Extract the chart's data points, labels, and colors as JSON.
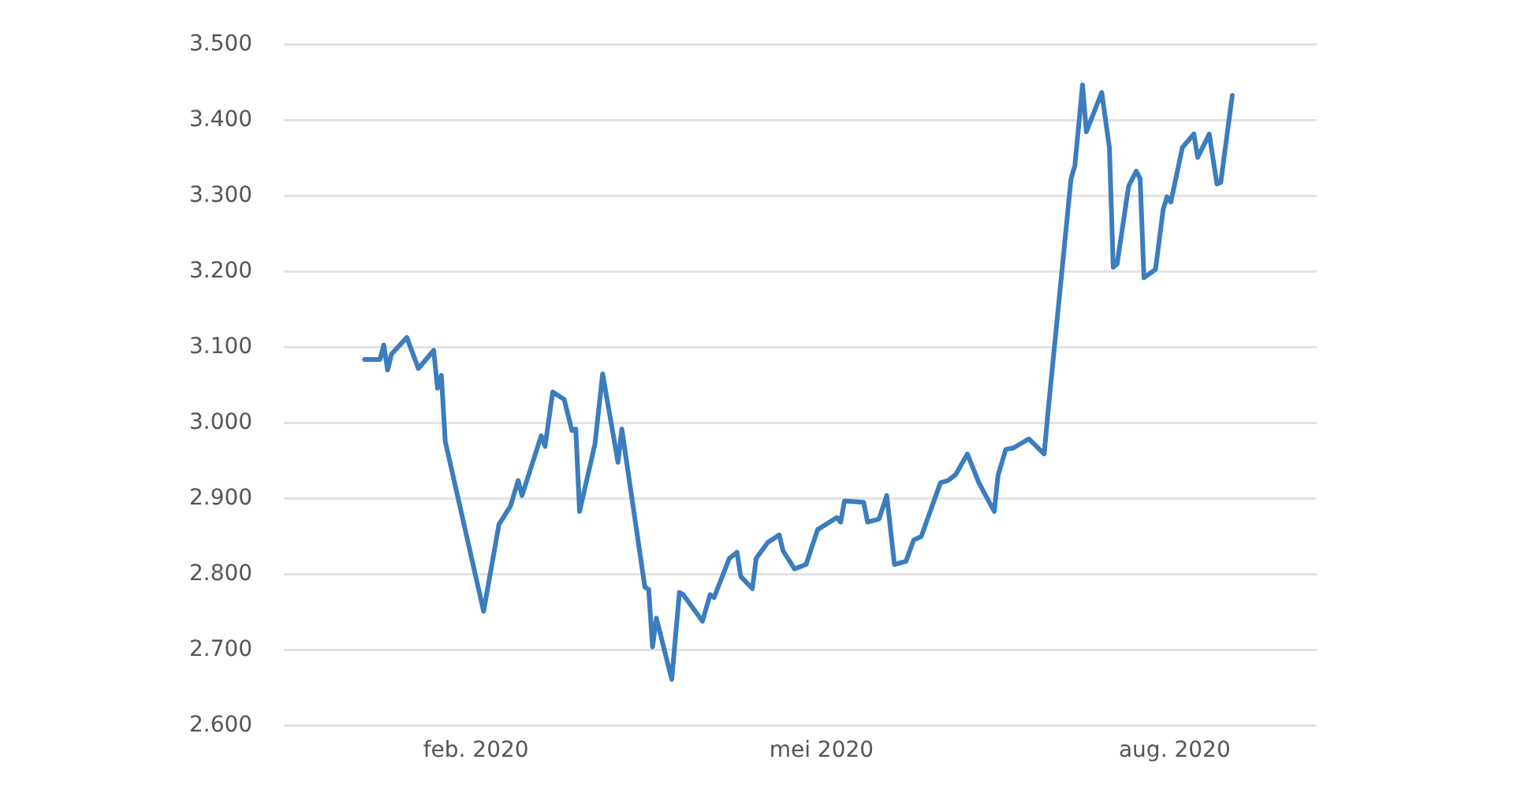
{
  "chart_data": {
    "type": "line",
    "x": [
      "2020-01-03",
      "2020-01-07",
      "2020-01-08",
      "2020-01-09",
      "2020-01-10",
      "2020-01-14",
      "2020-01-17",
      "2020-01-21",
      "2020-01-22",
      "2020-01-23",
      "2020-01-24",
      "2020-02-03",
      "2020-02-07",
      "2020-02-10",
      "2020-02-12",
      "2020-02-13",
      "2020-02-18",
      "2020-02-19",
      "2020-02-21",
      "2020-02-24",
      "2020-02-26",
      "2020-02-27",
      "2020-02-28",
      "2020-03-03",
      "2020-03-05",
      "2020-03-09",
      "2020-03-10",
      "2020-03-16",
      "2020-03-17",
      "2020-03-18",
      "2020-03-19",
      "2020-03-23",
      "2020-03-25",
      "2020-03-26",
      "2020-03-31",
      "2020-04-02",
      "2020-04-03",
      "2020-04-07",
      "2020-04-09",
      "2020-04-10",
      "2020-04-13",
      "2020-04-14",
      "2020-04-17",
      "2020-04-20",
      "2020-04-21",
      "2020-04-24",
      "2020-04-27",
      "2020-04-30",
      "2020-05-05",
      "2020-05-06",
      "2020-05-07",
      "2020-05-12",
      "2020-05-13",
      "2020-05-16",
      "2020-05-18",
      "2020-05-20",
      "2020-05-23",
      "2020-05-25",
      "2020-05-27",
      "2020-06-01",
      "2020-06-03",
      "2020-06-05",
      "2020-06-08",
      "2020-06-11",
      "2020-06-15",
      "2020-06-16",
      "2020-06-18",
      "2020-06-20",
      "2020-06-24",
      "2020-06-28",
      "2020-06-29",
      "2020-07-05",
      "2020-07-06",
      "2020-07-08",
      "2020-07-09",
      "2020-07-13",
      "2020-07-15",
      "2020-07-16",
      "2020-07-17",
      "2020-07-20",
      "2020-07-22",
      "2020-07-23",
      "2020-07-24",
      "2020-07-27",
      "2020-07-29",
      "2020-07-30",
      "2020-07-31",
      "2020-08-03",
      "2020-08-06",
      "2020-08-07",
      "2020-08-10",
      "2020-08-12",
      "2020-08-13",
      "2020-08-16"
    ],
    "series": [
      {
        "color": "#3b7dbd",
        "values": [
          3084,
          3084,
          3103,
          3070,
          3091,
          3113,
          3072,
          3096,
          3046,
          3063,
          2976,
          2751,
          2866,
          2890,
          2924,
          2904,
          2983,
          2969,
          3041,
          3031,
          2990,
          2992,
          2883,
          2972,
          3065,
          2948,
          2992,
          2783,
          2780,
          2704,
          2742,
          2661,
          2776,
          2773,
          2738,
          2773,
          2769,
          2821,
          2829,
          2797,
          2781,
          2821,
          2842,
          2852,
          2831,
          2807,
          2813,
          2859,
          2875,
          2869,
          2897,
          2895,
          2869,
          2873,
          2904,
          2813,
          2817,
          2845,
          2850,
          2921,
          2924,
          2932,
          2959,
          2921,
          2883,
          2931,
          2965,
          2967,
          2979,
          2959,
          3014,
          3323,
          3340,
          3447,
          3385,
          3437,
          3364,
          3206,
          3210,
          3313,
          3333,
          3323,
          3192,
          3203,
          3282,
          3299,
          3292,
          3364,
          3382,
          3351,
          3382,
          3316,
          3318,
          3433
        ]
      }
    ],
    "xlim": [
      "2019-12-13",
      "2020-09-07"
    ],
    "xticks": [
      {
        "value": "2020-02-01",
        "label": "feb. 2020"
      },
      {
        "value": "2020-05-01",
        "label": "mei 2020"
      },
      {
        "value": "2020-08-01",
        "label": "aug. 2020"
      }
    ],
    "ylim": [
      2600,
      3500
    ],
    "yticks": [
      {
        "value": 2600,
        "label": "2.600"
      },
      {
        "value": 2700,
        "label": "2.700"
      },
      {
        "value": 2800,
        "label": "2.800"
      },
      {
        "value": 2900,
        "label": "2.900"
      },
      {
        "value": 3000,
        "label": "3.000"
      },
      {
        "value": 3100,
        "label": "3.100"
      },
      {
        "value": 3200,
        "label": "3.200"
      },
      {
        "value": 3300,
        "label": "3.300"
      },
      {
        "value": 3400,
        "label": "3.400"
      },
      {
        "value": 3500,
        "label": "3.500"
      }
    ],
    "grid": "y",
    "legend": false,
    "marker": "none",
    "line_style": "solid"
  }
}
